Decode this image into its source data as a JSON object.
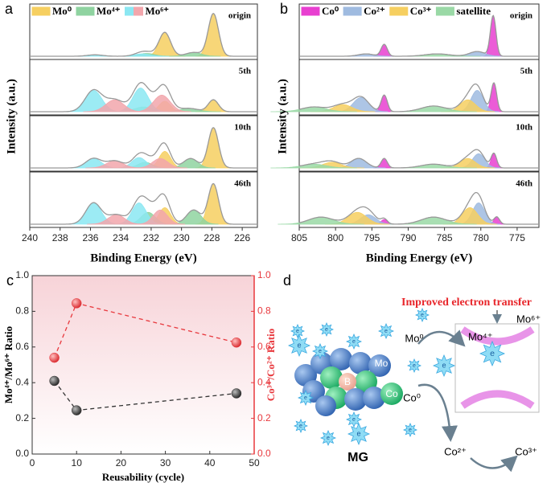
{
  "chart_data": [
    {
      "type": "xps",
      "panel": "a",
      "xlabel": "Binding Energy (eV)",
      "ylabel": "Intensity (a.u.)",
      "xlim": [
        240,
        225
      ],
      "xticks": [
        240,
        238,
        236,
        234,
        232,
        230,
        228,
        226
      ],
      "ylim": [
        0,
        1
      ],
      "subplot_labels": [
        "origin",
        "5th",
        "10th",
        "46th"
      ],
      "series": [
        {
          "name": "Mo⁰",
          "components": [
            {
              "color": "#f6cf60",
              "peaks": [
                [
                  {
                    "x": 227.9,
                    "height": 0.9,
                    "fwhm": 0.8
                  },
                  {
                    "x": 231.1,
                    "height": 0.5,
                    "fwhm": 0.9
                  }
                ],
                [
                  {
                    "x": 227.9,
                    "height": 0.25,
                    "fwhm": 0.8
                  },
                  {
                    "x": 231.1,
                    "height": 0.22,
                    "fwhm": 0.9
                  }
                ],
                [
                  {
                    "x": 227.9,
                    "height": 0.85,
                    "fwhm": 0.8
                  },
                  {
                    "x": 231.1,
                    "height": 0.35,
                    "fwhm": 0.9
                  }
                ],
                [
                  {
                    "x": 227.9,
                    "height": 0.85,
                    "fwhm": 0.8
                  },
                  {
                    "x": 231.1,
                    "height": 0.35,
                    "fwhm": 0.9
                  }
                ]
              ]
            }
          ]
        },
        {
          "name": "Mo⁴⁺",
          "components": [
            {
              "color": "#8fd3a0",
              "peaks": [
                [
                  {
                    "x": 229.2,
                    "height": 0.08,
                    "fwhm": 1.2
                  },
                  {
                    "x": 232.3,
                    "height": 0.06,
                    "fwhm": 1.2
                  }
                ],
                [
                  {
                    "x": 229.5,
                    "height": 0.07,
                    "fwhm": 1.4
                  },
                  {
                    "x": 232.5,
                    "height": 0.1,
                    "fwhm": 1.4
                  }
                ],
                [
                  {
                    "x": 229.4,
                    "height": 0.2,
                    "fwhm": 1.1
                  },
                  {
                    "x": 232.4,
                    "height": 0.12,
                    "fwhm": 1.1
                  }
                ],
                [
                  {
                    "x": 229.2,
                    "height": 0.3,
                    "fwhm": 1.1
                  },
                  {
                    "x": 232.2,
                    "height": 0.25,
                    "fwhm": 1.1
                  }
                ]
              ]
            }
          ]
        },
        {
          "name": "Mo⁶⁺",
          "components": [
            {
              "color": "#8be7f2",
              "peaks": [
                [
                  {
                    "x": 232.6,
                    "height": 0.05,
                    "fwhm": 1.2
                  },
                  {
                    "x": 235.7,
                    "height": 0.03,
                    "fwhm": 1.2
                  }
                ],
                [
                  {
                    "x": 232.7,
                    "height": 0.5,
                    "fwhm": 1.2
                  },
                  {
                    "x": 235.8,
                    "height": 0.45,
                    "fwhm": 1.3
                  }
                ],
                [
                  {
                    "x": 232.8,
                    "height": 0.22,
                    "fwhm": 1.1
                  },
                  {
                    "x": 235.8,
                    "height": 0.2,
                    "fwhm": 1.2
                  }
                ],
                [
                  {
                    "x": 232.8,
                    "height": 0.45,
                    "fwhm": 1.1
                  },
                  {
                    "x": 235.8,
                    "height": 0.45,
                    "fwhm": 1.2
                  }
                ]
              ]
            },
            {
              "color": "#f2a6ac",
              "peaks": [
                [],
                [
                  {
                    "x": 231.3,
                    "height": 0.35,
                    "fwhm": 1.3
                  },
                  {
                    "x": 234.4,
                    "height": 0.25,
                    "fwhm": 1.4
                  }
                ],
                [
                  {
                    "x": 231.4,
                    "height": 0.2,
                    "fwhm": 1.2
                  },
                  {
                    "x": 234.4,
                    "height": 0.15,
                    "fwhm": 1.3
                  }
                ],
                [
                  {
                    "x": 231.4,
                    "height": 0.3,
                    "fwhm": 1.1
                  },
                  {
                    "x": 234.3,
                    "height": 0.2,
                    "fwhm": 1.3
                  }
                ]
              ]
            }
          ]
        }
      ]
    },
    {
      "type": "xps",
      "panel": "b",
      "xlabel": "Binding Energy (eV)",
      "ylabel": "Intensity (a.u.)",
      "xlim": [
        805,
        772
      ],
      "xticks": [
        805,
        800,
        795,
        790,
        785,
        780,
        775
      ],
      "ylim": [
        0,
        1
      ],
      "subplot_labels": [
        "origin",
        "5th",
        "10th",
        "46th"
      ],
      "series": [
        {
          "name": "Co⁰",
          "components": [
            {
              "color": "#e83fd0",
              "peaks": [
                [
                  {
                    "x": 778.3,
                    "height": 0.85,
                    "fwhm": 0.9
                  },
                  {
                    "x": 793.3,
                    "height": 0.25,
                    "fwhm": 1.0
                  }
                ],
                [
                  {
                    "x": 778.2,
                    "height": 0.6,
                    "fwhm": 0.9
                  },
                  {
                    "x": 793.3,
                    "height": 0.35,
                    "fwhm": 1.0
                  }
                ],
                [
                  {
                    "x": 778.2,
                    "height": 0.3,
                    "fwhm": 0.9
                  },
                  {
                    "x": 793.3,
                    "height": 0.2,
                    "fwhm": 1.0
                  }
                ],
                [
                  {
                    "x": 777.8,
                    "height": 0.15,
                    "fwhm": 0.9
                  },
                  {
                    "x": 793.3,
                    "height": 0.1,
                    "fwhm": 1.0
                  }
                ]
              ]
            }
          ]
        },
        {
          "name": "Co²⁺",
          "components": [
            {
              "color": "#9fbbe0",
              "peaks": [
                [
                  {
                    "x": 780.5,
                    "height": 0.1,
                    "fwhm": 2.5
                  },
                  {
                    "x": 795.8,
                    "height": 0.05,
                    "fwhm": 2.5
                  }
                ],
                [
                  {
                    "x": 780.5,
                    "height": 0.45,
                    "fwhm": 2.0
                  },
                  {
                    "x": 796.5,
                    "height": 0.3,
                    "fwhm": 2.5
                  }
                ],
                [
                  {
                    "x": 780.3,
                    "height": 0.3,
                    "fwhm": 2.0
                  },
                  {
                    "x": 796.8,
                    "height": 0.2,
                    "fwhm": 2.5
                  }
                ],
                [
                  {
                    "x": 780.3,
                    "height": 0.45,
                    "fwhm": 2.0
                  },
                  {
                    "x": 795.5,
                    "height": 0.2,
                    "fwhm": 2.5
                  }
                ]
              ]
            }
          ]
        },
        {
          "name": "Co³⁺",
          "components": [
            {
              "color": "#f6cf60",
              "peaks": [
                [],
                [
                  {
                    "x": 781.8,
                    "height": 0.25,
                    "fwhm": 2.5
                  },
                  {
                    "x": 799,
                    "height": 0.15,
                    "fwhm": 3
                  }
                ],
                [
                  {
                    "x": 781.8,
                    "height": 0.2,
                    "fwhm": 2.5
                  },
                  {
                    "x": 800.5,
                    "height": 0.12,
                    "fwhm": 3
                  }
                ],
                [
                  {
                    "x": 781.5,
                    "height": 0.35,
                    "fwhm": 2.5
                  },
                  {
                    "x": 797,
                    "height": 0.25,
                    "fwhm": 3
                  }
                ]
              ]
            }
          ]
        },
        {
          "name": "satellite",
          "components": [
            {
              "color": "#9ad9a6",
              "peaks": [
                [
                  {
                    "x": 786,
                    "height": 0.05,
                    "fwhm": 4
                  }
                ],
                [
                  {
                    "x": 786.5,
                    "height": 0.12,
                    "fwhm": 4
                  },
                  {
                    "x": 803,
                    "height": 0.1,
                    "fwhm": 4
                  }
                ],
                [
                  {
                    "x": 786.5,
                    "height": 0.08,
                    "fwhm": 4
                  },
                  {
                    "x": 803,
                    "height": 0.08,
                    "fwhm": 4
                  }
                ],
                [
                  {
                    "x": 786.5,
                    "height": 0.15,
                    "fwhm": 4
                  },
                  {
                    "x": 802,
                    "height": 0.15,
                    "fwhm": 4
                  }
                ]
              ]
            }
          ]
        }
      ]
    },
    {
      "type": "ratio",
      "panel": "c",
      "xlabel": "Reusability (cycle)",
      "ylabel": "Mo⁴⁺/Mo⁶⁺ Ratio",
      "y2label": "Co³⁺/Co²⁺ Ratio",
      "x": [
        5,
        10,
        46
      ],
      "xlim": [
        0,
        50
      ],
      "xticks": [
        0,
        10,
        20,
        30,
        40,
        50
      ],
      "ylim": [
        0,
        1
      ],
      "yticks": [
        {
          "value": 0,
          "label": "0.0"
        },
        0.2,
        0.4,
        0.6,
        0.8,
        {
          "value": 1,
          "label": "1.0"
        }
      ],
      "y2lim": [
        0,
        1
      ],
      "y2ticks": [
        {
          "value": 0,
          "label": "0.0"
        },
        0.2,
        0.4,
        0.6,
        0.8,
        {
          "value": 1,
          "label": "1.0"
        }
      ],
      "series": [
        {
          "color": "#333333",
          "values": [
            0.41,
            0.245,
            0.34
          ]
        },
        {
          "color": "#e8383d",
          "axis": "y2",
          "values": [
            0.54,
            0.845,
            0.625
          ]
        }
      ]
    }
  ],
  "diagram": {
    "panel": "d",
    "title": "Improved electron transfer",
    "electron": "e",
    "mo0": "Mo⁰",
    "mo4": "Mo⁴⁺",
    "mo6": "Mo⁶⁺",
    "co0": "Co⁰",
    "co2": "Co²⁺",
    "co3": "Co³⁺",
    "material": "MG",
    "boron": "B",
    "molybdenum": "Mo",
    "cobalt": "Co"
  }
}
